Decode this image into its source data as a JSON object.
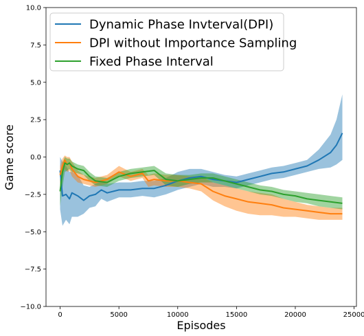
{
  "chart_data": {
    "type": "line",
    "title": "",
    "xlabel": "Episodes",
    "ylabel": "Game score",
    "xlim": [
      -1200,
      25200
    ],
    "ylim": [
      -10.0,
      10.0
    ],
    "xticks": [
      0,
      5000,
      10000,
      15000,
      20000,
      25000
    ],
    "xtick_labels": [
      "0",
      "5000",
      "10000",
      "15000",
      "20000",
      "25000"
    ],
    "yticks": [
      -10.0,
      -7.5,
      -5.0,
      -2.5,
      0.0,
      2.5,
      5.0,
      7.5,
      10.0
    ],
    "ytick_labels": [
      "−10.0",
      "−7.5",
      "−5.0",
      "−2.5",
      "0.0",
      "2.5",
      "5.0",
      "7.5",
      "10.0"
    ],
    "grid": false,
    "legend_position": "top-left",
    "series": [
      {
        "name": "Dynamic Phase Invterval(DPI)",
        "color": "#1f77b4",
        "x": [
          0,
          200,
          500,
          800,
          1000,
          1500,
          2000,
          2500,
          3000,
          3500,
          4000,
          5000,
          6000,
          7000,
          8000,
          9000,
          10000,
          11000,
          12000,
          13000,
          14000,
          15000,
          16000,
          17000,
          18000,
          19000,
          20000,
          21000,
          22000,
          23000,
          23500,
          24000
        ],
        "mean": [
          -0.9,
          -2.6,
          -2.5,
          -2.8,
          -2.4,
          -2.6,
          -2.9,
          -2.6,
          -2.5,
          -2.2,
          -2.4,
          -2.2,
          -2.2,
          -2.1,
          -2.1,
          -1.9,
          -1.6,
          -1.4,
          -1.3,
          -1.5,
          -1.6,
          -1.7,
          -1.5,
          -1.3,
          -1.1,
          -1.0,
          -0.8,
          -0.6,
          -0.2,
          0.3,
          0.8,
          1.6
        ],
        "lower": [
          -3.5,
          -4.6,
          -4.2,
          -4.5,
          -4.0,
          -4.0,
          -3.8,
          -3.4,
          -3.3,
          -2.8,
          -3.0,
          -2.7,
          -2.7,
          -2.6,
          -2.7,
          -2.5,
          -2.2,
          -2.0,
          -1.8,
          -2.0,
          -2.0,
          -2.1,
          -1.9,
          -1.7,
          -1.5,
          -1.4,
          -1.2,
          -1.0,
          -0.8,
          -0.7,
          -0.5,
          -0.2
        ],
        "upper": [
          0.0,
          -0.3,
          -0.6,
          -1.0,
          -1.0,
          -1.2,
          -1.9,
          -2.0,
          -1.8,
          -1.6,
          -1.8,
          -1.7,
          -1.7,
          -1.6,
          -1.6,
          -1.4,
          -1.0,
          -0.8,
          -0.8,
          -1.0,
          -1.2,
          -1.3,
          -1.1,
          -0.9,
          -0.7,
          -0.6,
          -0.4,
          -0.2,
          0.5,
          1.5,
          2.5,
          4.2
        ]
      },
      {
        "name": "DPI without Importance Sampling",
        "color": "#ff7f0e",
        "x": [
          0,
          200,
          400,
          600,
          800,
          1000,
          1500,
          2000,
          3000,
          4000,
          5000,
          6000,
          7000,
          7500,
          8000,
          9000,
          10000,
          11000,
          12000,
          13000,
          14000,
          15000,
          16000,
          17000,
          18000,
          19000,
          20000,
          21000,
          22000,
          23000,
          24000
        ],
        "mean": [
          -1.2,
          -0.6,
          -0.2,
          -0.5,
          -0.4,
          -0.8,
          -1.3,
          -1.5,
          -1.7,
          -1.5,
          -1.0,
          -1.3,
          -1.1,
          -1.6,
          -1.5,
          -1.6,
          -1.6,
          -1.7,
          -1.8,
          -2.3,
          -2.6,
          -2.8,
          -3.0,
          -3.1,
          -3.2,
          -3.4,
          -3.5,
          -3.6,
          -3.7,
          -3.8,
          -3.8
        ],
        "lower": [
          -1.8,
          -1.2,
          -0.8,
          -1.0,
          -0.9,
          -1.3,
          -1.7,
          -1.8,
          -2.0,
          -1.8,
          -1.3,
          -1.6,
          -1.4,
          -2.0,
          -1.9,
          -2.0,
          -2.0,
          -2.1,
          -2.3,
          -2.9,
          -3.3,
          -3.6,
          -3.8,
          -3.9,
          -3.9,
          -4.0,
          -4.0,
          -4.1,
          -4.2,
          -4.2,
          -4.2
        ],
        "upper": [
          -0.6,
          -0.1,
          0.1,
          0.0,
          0.0,
          -0.3,
          -0.9,
          -1.2,
          -1.4,
          -1.2,
          -0.6,
          -1.0,
          -0.8,
          -1.2,
          -1.1,
          -1.2,
          -1.2,
          -1.3,
          -1.3,
          -1.7,
          -1.9,
          -2.1,
          -2.3,
          -2.4,
          -2.5,
          -2.8,
          -3.0,
          -3.2,
          -3.3,
          -3.4,
          -3.4
        ]
      },
      {
        "name": "Fixed Phase Interval",
        "color": "#2ca02c",
        "x": [
          0,
          200,
          400,
          600,
          800,
          1000,
          1500,
          2000,
          2500,
          3000,
          4000,
          5000,
          6000,
          7000,
          8000,
          9000,
          10000,
          11000,
          12000,
          13000,
          14000,
          15000,
          16000,
          17000,
          18000,
          19000,
          20000,
          21000,
          22000,
          23000,
          24000
        ],
        "mean": [
          -2.3,
          -1.0,
          -0.4,
          -0.5,
          -0.4,
          -0.6,
          -0.8,
          -0.9,
          -1.3,
          -1.6,
          -1.7,
          -1.3,
          -1.1,
          -1.0,
          -0.9,
          -1.5,
          -1.6,
          -1.5,
          -1.4,
          -1.4,
          -1.6,
          -1.8,
          -2.0,
          -2.2,
          -2.3,
          -2.5,
          -2.6,
          -2.8,
          -2.9,
          -3.0,
          -3.1
        ],
        "lower": [
          -3.3,
          -2.0,
          -1.0,
          -0.9,
          -0.8,
          -1.0,
          -1.1,
          -1.2,
          -1.6,
          -1.9,
          -2.0,
          -1.6,
          -1.4,
          -1.3,
          -1.2,
          -1.9,
          -2.0,
          -1.8,
          -1.7,
          -1.7,
          -1.9,
          -2.1,
          -2.3,
          -2.5,
          -2.6,
          -2.8,
          -3.0,
          -3.1,
          -3.3,
          -3.4,
          -3.5
        ],
        "upper": [
          -1.5,
          -0.4,
          0.0,
          -0.1,
          -0.1,
          -0.3,
          -0.5,
          -0.6,
          -1.0,
          -1.3,
          -1.4,
          -1.0,
          -0.8,
          -0.7,
          -0.6,
          -1.1,
          -1.2,
          -1.2,
          -1.1,
          -1.1,
          -1.3,
          -1.5,
          -1.7,
          -1.9,
          -2.0,
          -2.2,
          -2.3,
          -2.4,
          -2.5,
          -2.6,
          -2.7
        ]
      }
    ]
  }
}
